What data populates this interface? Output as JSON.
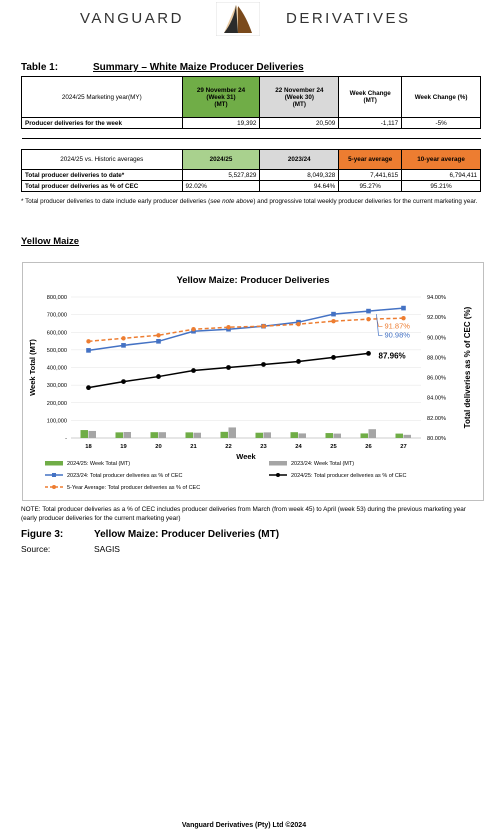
{
  "header": {
    "brand_left": "VANGUARD",
    "brand_right": "DERIVATIVES"
  },
  "table1": {
    "label": "Table 1:",
    "title": "Summary – White Maize Producer Deliveries",
    "year_label": "2024/25 Marketing year(MY)",
    "col1": [
      "29 November 24",
      "(Week 31)",
      "(MT)"
    ],
    "col2": [
      "22 November 24",
      "(Week 30)",
      "(MT)"
    ],
    "col3": [
      "Week Change",
      "(MT)"
    ],
    "col4": "Week Change (%)",
    "row_week": {
      "label": "Producer deliveries for the week",
      "v1": "19,392",
      "v2": "20,509",
      "v3": "-1,117",
      "v4": "-5%"
    },
    "hist_label": "2024/25 vs. Historic averages",
    "hist_cols": [
      "2024/25",
      "2023/24",
      "5-year average",
      "10-year average"
    ],
    "row_total": {
      "label": "Total producer deliveries to date*",
      "v1": "5,527,829",
      "v2": "8,049,328",
      "v3": "7,441,615",
      "v4": "6,794,411"
    },
    "row_pct": {
      "label": "Total producer deliveries as % of CEC",
      "v1": "92.02%",
      "v2": "94.64%",
      "v3": "95.27%",
      "v4": "95.21%"
    }
  },
  "footnote": {
    "pre": "* Total producer deliveries to date include early producer deliveries (",
    "italic": "see note above",
    "post": ") and progressive total weekly producer deliveries for the current marketing year."
  },
  "section_title": "Yellow Maize",
  "chart_data": {
    "type": "bar",
    "title": "Yellow Maize: Producer Deliveries",
    "xlabel": "Week",
    "ylabel_left": "Week Total (MT)",
    "ylabel_right": "Total deliveries as % of CEC (%)",
    "categories": [
      "18",
      "19",
      "20",
      "21",
      "22",
      "23",
      "24",
      "25",
      "26",
      "27"
    ],
    "ylim_left": [
      0,
      800000
    ],
    "yticks_left": [
      "-",
      "100,000",
      "200,000",
      "300,000",
      "400,000",
      "500,000",
      "600,000",
      "700,000",
      "800,000"
    ],
    "ylim_right": [
      80,
      94
    ],
    "yticks_right": [
      "80.00%",
      "82.00%",
      "84.00%",
      "86.00%",
      "88.00%",
      "90.00%",
      "92.00%",
      "94.00%"
    ],
    "series": [
      {
        "name": "2024/25: Week Total (MT)",
        "kind": "bar",
        "axis": "left",
        "color": "#70ad47",
        "values": [
          45000,
          32000,
          33000,
          32000,
          35000,
          30000,
          33000,
          28000,
          26000,
          25000
        ]
      },
      {
        "name": "2023/24: Week Total (MT)",
        "kind": "bar",
        "axis": "left",
        "color": "#a5a5a5",
        "values": [
          40000,
          34000,
          33000,
          30000,
          60000,
          32000,
          26000,
          25000,
          50000,
          18000
        ]
      },
      {
        "name": "2023/24: Total producer deliveries as % of CEC",
        "kind": "line",
        "axis": "right",
        "color": "#4472c4",
        "values": [
          88.7,
          89.2,
          89.6,
          90.6,
          90.8,
          91.1,
          91.5,
          92.3,
          92.6,
          92.9
        ]
      },
      {
        "name": "2024/25: Total producer deliveries as % of CEC",
        "kind": "line",
        "axis": "right",
        "color": "#000000",
        "values": [
          85.0,
          85.6,
          86.1,
          86.7,
          87.0,
          87.3,
          87.6,
          88.0,
          88.4,
          null
        ]
      },
      {
        "name": "5-Year Average: Total producer deliveries as % of CEC",
        "kind": "line",
        "axis": "right",
        "color": "#ed7d31",
        "values": [
          89.6,
          89.9,
          90.2,
          90.8,
          91.0,
          91.1,
          91.3,
          91.6,
          91.8,
          91.9
        ]
      }
    ],
    "annotations": [
      "91.87%",
      "90.98%",
      "87.96%"
    ]
  },
  "note": "NOTE: Total producer deliveries as a % of CEC includes producer deliveries from March (from week 45) to April (week 53) during the previous marketing year (early producer deliveries for the current marketing year)",
  "figure": {
    "label": "Figure 3:",
    "title": "Yellow Maize: Producer Deliveries (MT)"
  },
  "source": {
    "label": "Source:",
    "value": "SAGIS"
  },
  "footer": "Vanguard Derivatives (Pty) Ltd ©2024"
}
